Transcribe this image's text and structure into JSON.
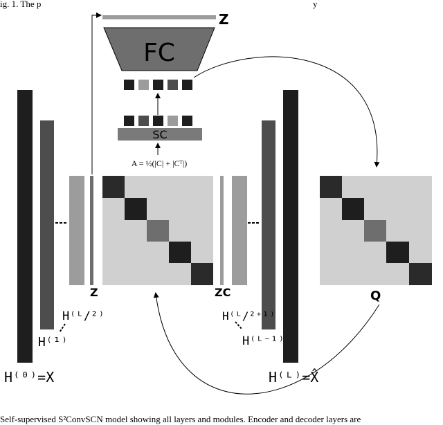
{
  "header_text": "ig. 1. The p",
  "header_text_right": "y",
  "labels": {
    "z_top": "Z",
    "fc": "FC",
    "sc": "SC",
    "formula": "A = ½(|C| + |Cᵀ|)",
    "z_mid": "Z",
    "zc": "ZC",
    "q": "Q",
    "h0": "H⁽⁰⁾=X",
    "h1": "H⁽¹⁾",
    "hL2": "H⁽ᴸ/²⁾",
    "hL21": "H⁽ᴸ/²⁺¹⁾",
    "hL1": "H⁽ᴸ⁻¹⁾",
    "hL": "H⁽ᴸ⁾=X̂"
  },
  "caption": "Self-supervised S²ConvSCN model showing all layers and modules. Encoder and decoder layers are",
  "colors": {
    "darkest": "#1e1e1e",
    "dark": "#4d4d4d",
    "mid": "#6e6e6e",
    "light": "#9c9c9c",
    "matrix_bg": "#d0d0d0",
    "block_mid": "#7a7a7a"
  }
}
